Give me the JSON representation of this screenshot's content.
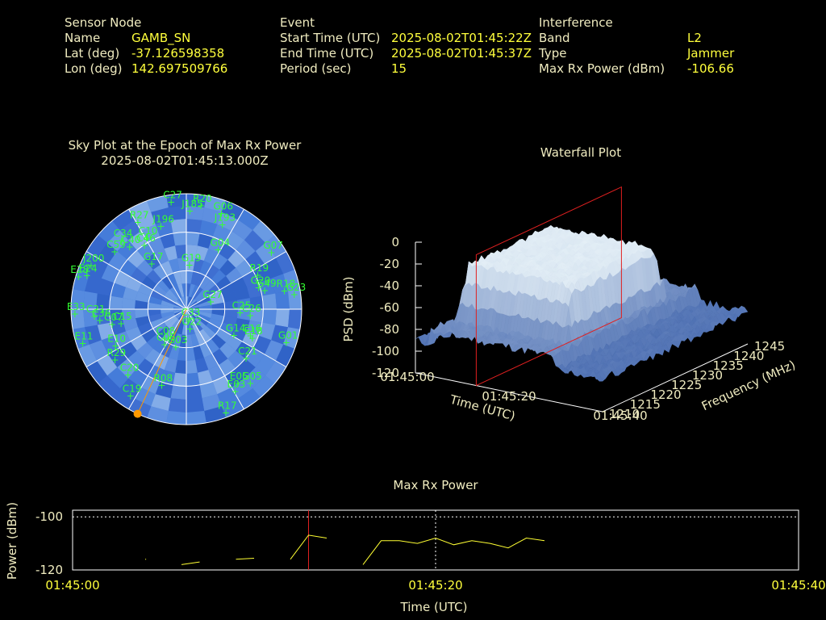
{
  "header": {
    "sensor": {
      "heading": "Sensor Node",
      "rows": [
        {
          "label": "Name",
          "value": "GAMB_SN"
        },
        {
          "label": "Lat (deg)",
          "value": "-37.126598358"
        },
        {
          "label": "Lon (deg)",
          "value": "142.697509766"
        }
      ]
    },
    "event": {
      "heading": "Event",
      "rows": [
        {
          "label": "Start Time (UTC)",
          "value": "2025-08-02T01:45:22Z"
        },
        {
          "label": "End Time (UTC)",
          "value": "2025-08-02T01:45:37Z"
        },
        {
          "label": "Period (sec)",
          "value": "15"
        }
      ]
    },
    "interference": {
      "heading": "Interference",
      "rows": [
        {
          "label": "Band",
          "value": "L2"
        },
        {
          "label": "Type",
          "value": "Jammer"
        },
        {
          "label": "Max Rx Power (dBm)",
          "value": "-106.66"
        }
      ]
    }
  },
  "colors": {
    "label": "#f0ecc0",
    "value": "#ffff3c",
    "sat": "#33ff33",
    "marker": "#ff9900",
    "redline": "#e02020",
    "power_line": "#ffff33",
    "sky_base": "#3a6fd0"
  },
  "chart_data": [
    {
      "type": "scatter",
      "name": "skyplot",
      "title": "Sky Plot at the Epoch of Max Rx Power",
      "subtitle": "2025-08-02T01:45:13.000Z",
      "satellites": [
        {
          "id": "R20",
          "az": 8,
          "el": 8
        },
        {
          "id": "C27",
          "az": 352,
          "el": 5
        },
        {
          "id": "J185",
          "az": 2,
          "el": 13
        },
        {
          "id": "G06",
          "az": 20,
          "el": 10
        },
        {
          "id": "J193",
          "az": 23,
          "el": 18
        },
        {
          "id": "R27",
          "az": 331,
          "el": 12
        },
        {
          "id": "J196",
          "az": 343,
          "el": 22
        },
        {
          "id": "C34",
          "az": 317,
          "el": 16
        },
        {
          "id": "G07",
          "az": 56,
          "el": 10
        },
        {
          "id": "C10",
          "az": 331,
          "el": 26
        },
        {
          "id": "G04",
          "az": 28,
          "el": 37
        },
        {
          "id": "C40",
          "az": 318,
          "el": 24
        },
        {
          "id": "C59",
          "az": 309,
          "el": 18
        },
        {
          "id": "C46",
          "az": 327,
          "el": 30
        },
        {
          "id": "J200",
          "az": 295,
          "el": 8
        },
        {
          "id": "G19",
          "az": 4,
          "el": 55
        },
        {
          "id": "R19",
          "az": 64,
          "el": 28
        },
        {
          "id": "G20",
          "az": 73,
          "el": 31
        },
        {
          "id": "G49",
          "az": 76,
          "el": 27
        },
        {
          "id": "E28",
          "az": 287,
          "el": 2
        },
        {
          "id": "E24",
          "az": 289,
          "el": 8
        },
        {
          "id": "G17",
          "az": 323,
          "el": 45
        },
        {
          "id": "R18",
          "az": 79,
          "el": 12
        },
        {
          "id": "G23",
          "az": 82,
          "el": 5
        },
        {
          "id": "G27",
          "az": 72,
          "el": 70
        },
        {
          "id": "E33",
          "az": 268,
          "el": 3
        },
        {
          "id": "C36",
          "az": 263,
          "el": 22
        },
        {
          "id": "C07",
          "az": 259,
          "el": 31
        },
        {
          "id": "C21",
          "az": 266,
          "el": 18
        },
        {
          "id": "C15",
          "az": 258,
          "el": 38
        },
        {
          "id": "C33",
          "az": 163,
          "el": 82
        },
        {
          "id": "C25",
          "az": 93,
          "el": 48
        },
        {
          "id": "C26",
          "az": 95,
          "el": 40
        },
        {
          "id": "E11",
          "az": 252,
          "el": 5
        },
        {
          "id": "E10",
          "az": 243,
          "el": 28
        },
        {
          "id": "G22",
          "az": 169,
          "el": 75
        },
        {
          "id": "C08",
          "az": 218,
          "el": 62
        },
        {
          "id": "C06",
          "az": 212,
          "el": 58
        },
        {
          "id": "R29",
          "az": 235,
          "el": 22
        },
        {
          "id": "G03",
          "az": 196,
          "el": 60
        },
        {
          "id": "G14",
          "az": 118,
          "el": 48
        },
        {
          "id": "E18",
          "az": 113,
          "el": 34
        },
        {
          "id": "C16",
          "az": 112,
          "el": 36
        },
        {
          "id": "G01",
          "az": 108,
          "el": 8
        },
        {
          "id": "C21b",
          "label": "C21",
          "az": 129,
          "el": 30
        },
        {
          "id": "E03",
          "az": 149,
          "el": 16
        },
        {
          "id": "C19",
          "az": 213,
          "el": 10
        },
        {
          "id": "C20",
          "az": 222,
          "el": 22
        },
        {
          "id": "R08",
          "az": 198,
          "el": 28
        },
        {
          "id": "E05",
          "az": 145,
          "el": 20
        },
        {
          "id": "G05",
          "az": 139,
          "el": 14
        },
        {
          "id": "R17",
          "az": 159,
          "el": 4
        }
      ],
      "max_power_direction": {
        "az": 205,
        "el": 0
      }
    },
    {
      "type": "surface",
      "name": "waterfall",
      "title": "Waterfall Plot",
      "zlabel": "PSD (dBm)",
      "xlabel": "Time (UTC)",
      "ylabel": "Frequency (MHz)",
      "z_ticks": [
        "0",
        "-20",
        "-40",
        "-60",
        "-80",
        "-100",
        "-120"
      ],
      "zlim": [
        -120,
        0
      ],
      "time_ticks": [
        "01:45:00",
        "01:45:20",
        "01:45:40"
      ],
      "freq_ticks": [
        "1210",
        "1215",
        "1220",
        "1225",
        "1230",
        "1235",
        "1240",
        "1245"
      ],
      "freq_range_mhz": [
        1210,
        1245
      ],
      "time_range_s": [
        0,
        40
      ],
      "noise_floor_dbm": -90,
      "jammer_band_mhz": [
        1215,
        1240
      ],
      "jammer_level_dbm": -30,
      "epoch_plane_s": 13
    },
    {
      "type": "line",
      "name": "max_rx_power",
      "title": "Max Rx Power",
      "xlabel": "Time (UTC)",
      "ylabel": "Power (dBm)",
      "x_ticks": [
        "01:45:00",
        "01:45:20",
        "01:45:40"
      ],
      "y_ticks": [
        "-100",
        "-120"
      ],
      "ylim": [
        -120,
        -97.5
      ],
      "xlim_s": [
        0,
        40
      ],
      "marker_s": 13,
      "segments": [
        [
          [
            4.0,
            -116.0
          ],
          [
            4.05,
            -116.0
          ]
        ],
        [
          [
            6.0,
            -118.0
          ],
          [
            7.0,
            -117.0
          ]
        ],
        [
          [
            9.0,
            -116.0
          ],
          [
            10.0,
            -115.6
          ]
        ],
        [
          [
            12.0,
            -116.0
          ],
          [
            13.0,
            -106.9
          ],
          [
            14.0,
            -108.0
          ]
        ],
        [
          [
            16.0,
            -118.0
          ],
          [
            17.0,
            -109.0
          ],
          [
            18.0,
            -109.0
          ],
          [
            19.0,
            -110.0
          ],
          [
            20.0,
            -108.0
          ],
          [
            21.0,
            -110.5
          ],
          [
            22.0,
            -109.0
          ],
          [
            23.0,
            -110.0
          ],
          [
            24.0,
            -111.7
          ],
          [
            25.0,
            -108.0
          ],
          [
            26.0,
            -109.0
          ]
        ]
      ]
    }
  ]
}
